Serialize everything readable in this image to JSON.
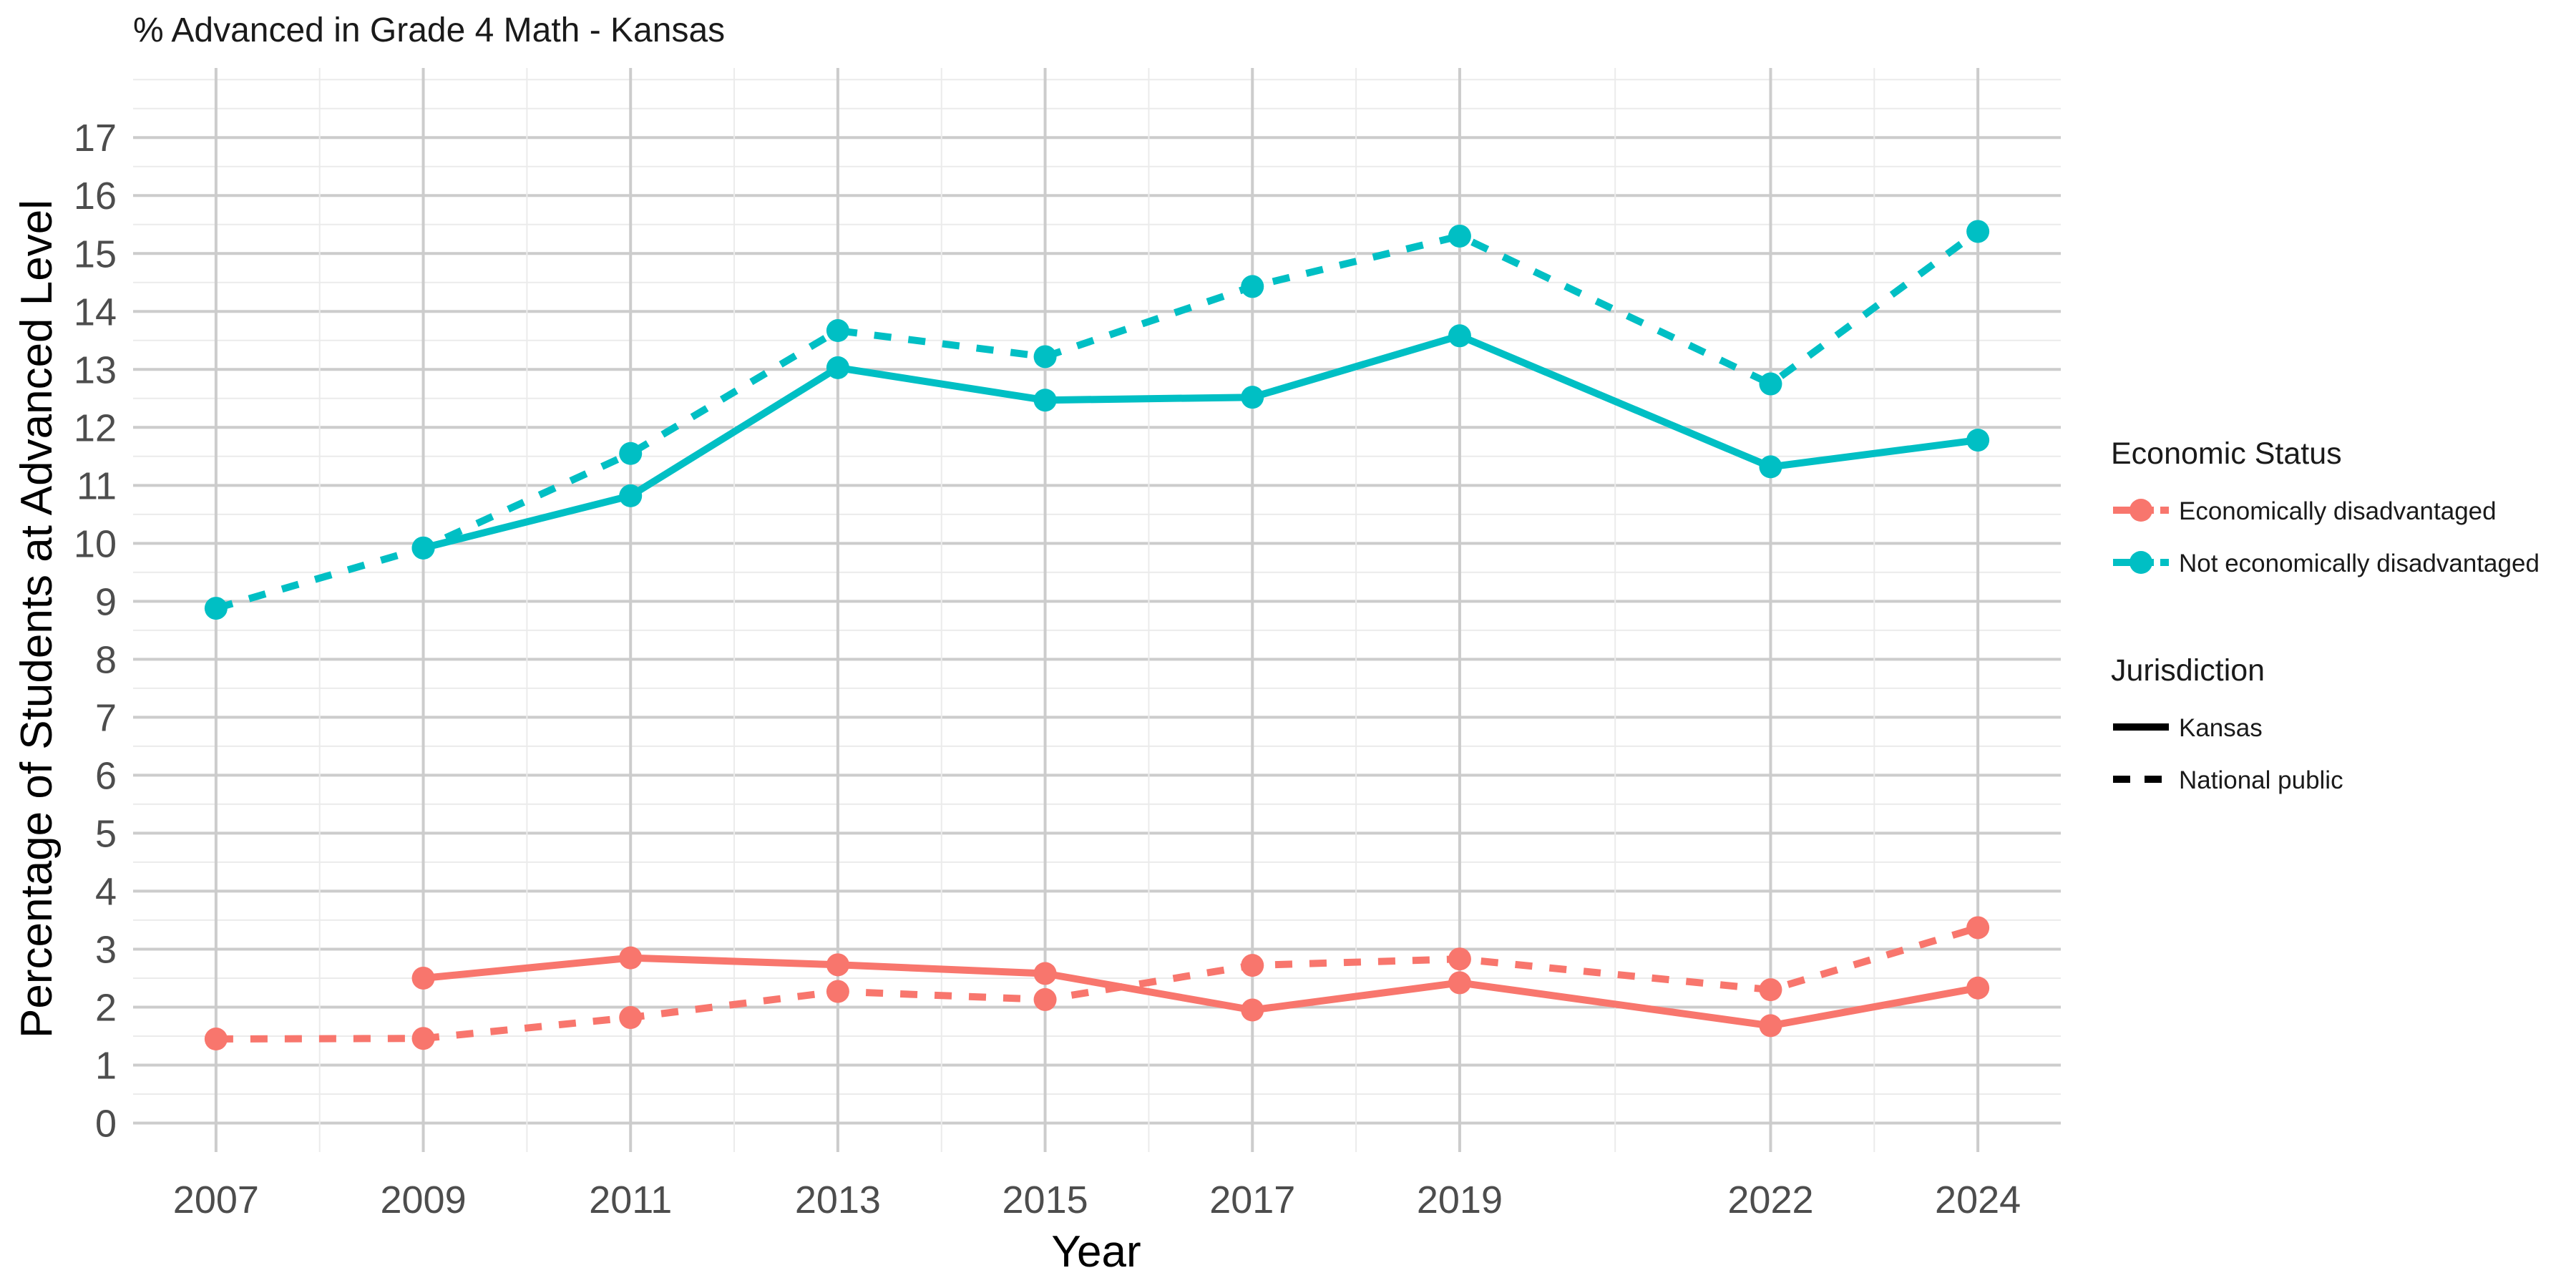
{
  "chart_data": {
    "type": "line",
    "title": "% Advanced in Grade 4 Math - Kansas",
    "xlabel": "Year",
    "ylabel": "Percentage of Students at Advanced Level",
    "x": [
      2007,
      2009,
      2011,
      2013,
      2015,
      2017,
      2019,
      2022,
      2024
    ],
    "x_ticks": [
      "2007",
      "2009",
      "2011",
      "2013",
      "2015",
      "2017",
      "2019",
      "2022",
      "2024"
    ],
    "xlim": [
      2006.2,
      2024.8
    ],
    "y_ticks": [
      "0",
      "1",
      "2",
      "3",
      "4",
      "5",
      "6",
      "7",
      "8",
      "9",
      "10",
      "11",
      "12",
      "13",
      "14",
      "15",
      "16",
      "17"
    ],
    "ylim": [
      -0.5,
      18.2
    ],
    "grid": true,
    "legend_position": "right",
    "legend": {
      "color_title": "Economic Status",
      "color_items": [
        {
          "label": "Economically disadvantaged",
          "color": "#F8766D"
        },
        {
          "label": "Not economically disadvantaged",
          "color": "#00BFC4"
        }
      ],
      "linetype_title": "Jurisdiction",
      "linetype_items": [
        {
          "label": "Kansas",
          "dash": "solid"
        },
        {
          "label": "National public",
          "dash": "dashed"
        }
      ]
    },
    "series": [
      {
        "group": "Economically disadvantaged",
        "jurisdiction": "Kansas",
        "color": "#F8766D",
        "dash": "solid",
        "points": [
          [
            2009,
            2.5
          ],
          [
            2011,
            2.85
          ],
          [
            2013,
            2.73
          ],
          [
            2015,
            2.58
          ],
          [
            2017,
            1.95
          ],
          [
            2019,
            2.42
          ],
          [
            2022,
            1.68
          ],
          [
            2024,
            2.33
          ]
        ]
      },
      {
        "group": "Economically disadvantaged",
        "jurisdiction": "National public",
        "color": "#F8766D",
        "dash": "dashed",
        "points": [
          [
            2007,
            1.45
          ],
          [
            2009,
            1.46
          ],
          [
            2011,
            1.82
          ],
          [
            2013,
            2.27
          ],
          [
            2015,
            2.13
          ],
          [
            2017,
            2.72
          ],
          [
            2019,
            2.83
          ],
          [
            2022,
            2.3
          ],
          [
            2024,
            3.37
          ]
        ]
      },
      {
        "group": "Not economically disadvantaged",
        "jurisdiction": "Kansas",
        "color": "#00BFC4",
        "dash": "solid",
        "points": [
          [
            2009,
            9.92
          ],
          [
            2011,
            10.82
          ],
          [
            2013,
            13.03
          ],
          [
            2015,
            12.47
          ],
          [
            2017,
            12.52
          ],
          [
            2019,
            13.58
          ],
          [
            2022,
            11.32
          ],
          [
            2024,
            11.78
          ]
        ]
      },
      {
        "group": "Not economically disadvantaged",
        "jurisdiction": "National public",
        "color": "#00BFC4",
        "dash": "dashed",
        "points": [
          [
            2007,
            8.88
          ],
          [
            2009,
            9.92
          ],
          [
            2011,
            11.55
          ],
          [
            2013,
            13.67
          ],
          [
            2015,
            13.22
          ],
          [
            2017,
            14.43
          ],
          [
            2019,
            15.3
          ],
          [
            2022,
            12.75
          ],
          [
            2024,
            15.38
          ]
        ]
      }
    ]
  }
}
